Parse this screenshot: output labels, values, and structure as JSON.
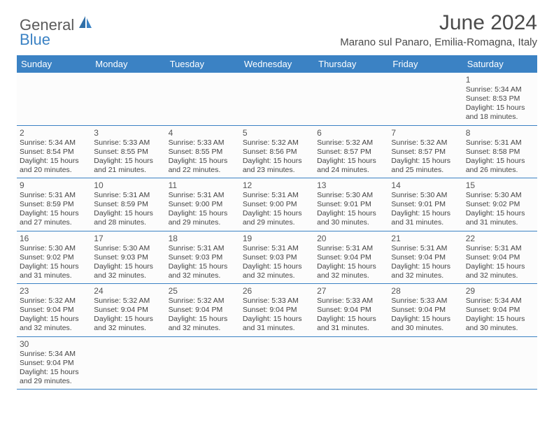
{
  "logo": {
    "general": "General",
    "blue": "Blue"
  },
  "title": "June 2024",
  "location": "Marano sul Panaro, Emilia-Romagna, Italy",
  "colors": {
    "header_bg": "#3b82c4",
    "header_text": "#ffffff",
    "row_border": "#3b82c4",
    "cell_bg": "#fcfcfc",
    "text": "#444444",
    "title_text": "#4a4a4a"
  },
  "dayHeaders": [
    "Sunday",
    "Monday",
    "Tuesday",
    "Wednesday",
    "Thursday",
    "Friday",
    "Saturday"
  ],
  "weeks": [
    [
      null,
      null,
      null,
      null,
      null,
      null,
      {
        "n": "1",
        "sunrise": "Sunrise: 5:34 AM",
        "sunset": "Sunset: 8:53 PM",
        "dl1": "Daylight: 15 hours",
        "dl2": "and 18 minutes."
      }
    ],
    [
      {
        "n": "2",
        "sunrise": "Sunrise: 5:34 AM",
        "sunset": "Sunset: 8:54 PM",
        "dl1": "Daylight: 15 hours",
        "dl2": "and 20 minutes."
      },
      {
        "n": "3",
        "sunrise": "Sunrise: 5:33 AM",
        "sunset": "Sunset: 8:55 PM",
        "dl1": "Daylight: 15 hours",
        "dl2": "and 21 minutes."
      },
      {
        "n": "4",
        "sunrise": "Sunrise: 5:33 AM",
        "sunset": "Sunset: 8:55 PM",
        "dl1": "Daylight: 15 hours",
        "dl2": "and 22 minutes."
      },
      {
        "n": "5",
        "sunrise": "Sunrise: 5:32 AM",
        "sunset": "Sunset: 8:56 PM",
        "dl1": "Daylight: 15 hours",
        "dl2": "and 23 minutes."
      },
      {
        "n": "6",
        "sunrise": "Sunrise: 5:32 AM",
        "sunset": "Sunset: 8:57 PM",
        "dl1": "Daylight: 15 hours",
        "dl2": "and 24 minutes."
      },
      {
        "n": "7",
        "sunrise": "Sunrise: 5:32 AM",
        "sunset": "Sunset: 8:57 PM",
        "dl1": "Daylight: 15 hours",
        "dl2": "and 25 minutes."
      },
      {
        "n": "8",
        "sunrise": "Sunrise: 5:31 AM",
        "sunset": "Sunset: 8:58 PM",
        "dl1": "Daylight: 15 hours",
        "dl2": "and 26 minutes."
      }
    ],
    [
      {
        "n": "9",
        "sunrise": "Sunrise: 5:31 AM",
        "sunset": "Sunset: 8:59 PM",
        "dl1": "Daylight: 15 hours",
        "dl2": "and 27 minutes."
      },
      {
        "n": "10",
        "sunrise": "Sunrise: 5:31 AM",
        "sunset": "Sunset: 8:59 PM",
        "dl1": "Daylight: 15 hours",
        "dl2": "and 28 minutes."
      },
      {
        "n": "11",
        "sunrise": "Sunrise: 5:31 AM",
        "sunset": "Sunset: 9:00 PM",
        "dl1": "Daylight: 15 hours",
        "dl2": "and 29 minutes."
      },
      {
        "n": "12",
        "sunrise": "Sunrise: 5:31 AM",
        "sunset": "Sunset: 9:00 PM",
        "dl1": "Daylight: 15 hours",
        "dl2": "and 29 minutes."
      },
      {
        "n": "13",
        "sunrise": "Sunrise: 5:30 AM",
        "sunset": "Sunset: 9:01 PM",
        "dl1": "Daylight: 15 hours",
        "dl2": "and 30 minutes."
      },
      {
        "n": "14",
        "sunrise": "Sunrise: 5:30 AM",
        "sunset": "Sunset: 9:01 PM",
        "dl1": "Daylight: 15 hours",
        "dl2": "and 31 minutes."
      },
      {
        "n": "15",
        "sunrise": "Sunrise: 5:30 AM",
        "sunset": "Sunset: 9:02 PM",
        "dl1": "Daylight: 15 hours",
        "dl2": "and 31 minutes."
      }
    ],
    [
      {
        "n": "16",
        "sunrise": "Sunrise: 5:30 AM",
        "sunset": "Sunset: 9:02 PM",
        "dl1": "Daylight: 15 hours",
        "dl2": "and 31 minutes."
      },
      {
        "n": "17",
        "sunrise": "Sunrise: 5:30 AM",
        "sunset": "Sunset: 9:03 PM",
        "dl1": "Daylight: 15 hours",
        "dl2": "and 32 minutes."
      },
      {
        "n": "18",
        "sunrise": "Sunrise: 5:31 AM",
        "sunset": "Sunset: 9:03 PM",
        "dl1": "Daylight: 15 hours",
        "dl2": "and 32 minutes."
      },
      {
        "n": "19",
        "sunrise": "Sunrise: 5:31 AM",
        "sunset": "Sunset: 9:03 PM",
        "dl1": "Daylight: 15 hours",
        "dl2": "and 32 minutes."
      },
      {
        "n": "20",
        "sunrise": "Sunrise: 5:31 AM",
        "sunset": "Sunset: 9:04 PM",
        "dl1": "Daylight: 15 hours",
        "dl2": "and 32 minutes."
      },
      {
        "n": "21",
        "sunrise": "Sunrise: 5:31 AM",
        "sunset": "Sunset: 9:04 PM",
        "dl1": "Daylight: 15 hours",
        "dl2": "and 32 minutes."
      },
      {
        "n": "22",
        "sunrise": "Sunrise: 5:31 AM",
        "sunset": "Sunset: 9:04 PM",
        "dl1": "Daylight: 15 hours",
        "dl2": "and 32 minutes."
      }
    ],
    [
      {
        "n": "23",
        "sunrise": "Sunrise: 5:32 AM",
        "sunset": "Sunset: 9:04 PM",
        "dl1": "Daylight: 15 hours",
        "dl2": "and 32 minutes."
      },
      {
        "n": "24",
        "sunrise": "Sunrise: 5:32 AM",
        "sunset": "Sunset: 9:04 PM",
        "dl1": "Daylight: 15 hours",
        "dl2": "and 32 minutes."
      },
      {
        "n": "25",
        "sunrise": "Sunrise: 5:32 AM",
        "sunset": "Sunset: 9:04 PM",
        "dl1": "Daylight: 15 hours",
        "dl2": "and 32 minutes."
      },
      {
        "n": "26",
        "sunrise": "Sunrise: 5:33 AM",
        "sunset": "Sunset: 9:04 PM",
        "dl1": "Daylight: 15 hours",
        "dl2": "and 31 minutes."
      },
      {
        "n": "27",
        "sunrise": "Sunrise: 5:33 AM",
        "sunset": "Sunset: 9:04 PM",
        "dl1": "Daylight: 15 hours",
        "dl2": "and 31 minutes."
      },
      {
        "n": "28",
        "sunrise": "Sunrise: 5:33 AM",
        "sunset": "Sunset: 9:04 PM",
        "dl1": "Daylight: 15 hours",
        "dl2": "and 30 minutes."
      },
      {
        "n": "29",
        "sunrise": "Sunrise: 5:34 AM",
        "sunset": "Sunset: 9:04 PM",
        "dl1": "Daylight: 15 hours",
        "dl2": "and 30 minutes."
      }
    ],
    [
      {
        "n": "30",
        "sunrise": "Sunrise: 5:34 AM",
        "sunset": "Sunset: 9:04 PM",
        "dl1": "Daylight: 15 hours",
        "dl2": "and 29 minutes."
      },
      null,
      null,
      null,
      null,
      null,
      null
    ]
  ]
}
